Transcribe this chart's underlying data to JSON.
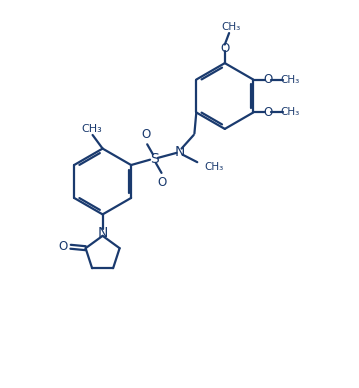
{
  "bg_color": "#ffffff",
  "line_color": "#1a3a6e",
  "line_width": 1.6,
  "font_size": 8.0,
  "fig_width": 3.59,
  "fig_height": 3.88,
  "dpi": 100,
  "xlim": [
    0,
    10
  ],
  "ylim": [
    0,
    10.8
  ]
}
